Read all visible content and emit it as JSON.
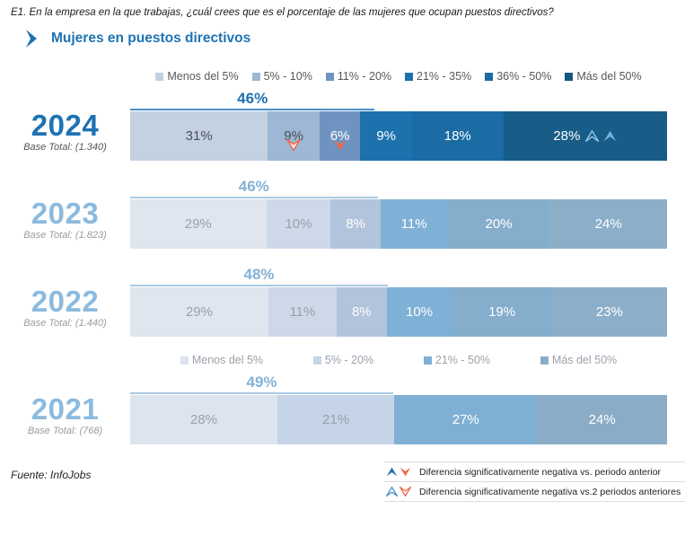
{
  "question": "E1. En la empresa en la que trabajas, ¿cuál crees que es el porcentaje de las mujeres que ocupan puestos directivos?",
  "title": "Mujeres en puestos directivos",
  "source": "Fuente: InfoJobs",
  "colors": {
    "accent": "#1e73b2",
    "question_text": "#1a1a1a",
    "legend_top_text": "#55585c",
    "legend_mid_text": "#9aa2ab",
    "orange": "#f2674a",
    "light_blue_marker": "#74b0dd"
  },
  "legend_top": [
    {
      "label": "Menos del 5%",
      "color": "#c3d1e2"
    },
    {
      "label": "5% - 10%",
      "color": "#9db7d4"
    },
    {
      "label": "11% - 20%",
      "color": "#6e93c0"
    },
    {
      "label": "21% - 35%",
      "color": "#1d72ad"
    },
    {
      "label": "36% - 50%",
      "color": "#1b6aa2"
    },
    {
      "label": "Más del 50%",
      "color": "#15567e"
    }
  ],
  "legend_mid": [
    {
      "label": "Menos del 5%",
      "color": "#dce4ee"
    },
    {
      "label": "5% - 20%",
      "color": "#c5d4e7"
    },
    {
      "label": "21% - 50%",
      "color": "#7fb0d4"
    },
    {
      "label": "Más del 50%",
      "color": "#8aacc6"
    }
  ],
  "markers": {
    "down-solid-orange": {
      "dir": "down",
      "fill": "#f2674a",
      "stroke": "none"
    },
    "down-outline-orange": {
      "dir": "down",
      "fill": "#ffffff",
      "stroke": "#f2674a"
    },
    "up-solid-light": {
      "dir": "up",
      "fill": "#74b0dd",
      "stroke": "none"
    },
    "up-outline-light": {
      "dir": "up",
      "fill": "none",
      "stroke": "#8fc0e4"
    },
    "up-solid-blue": {
      "dir": "up",
      "fill": "#2a6fb0",
      "stroke": "none"
    },
    "up-outline-blue": {
      "dir": "up",
      "fill": "#ffffff",
      "stroke": "#4a90c8"
    }
  },
  "sig_legend": [
    {
      "icons": [
        "up-solid-blue",
        "down-solid-orange"
      ],
      "label": "Diferencia significativamente negativa vs. periodo anterior"
    },
    {
      "icons": [
        "up-outline-blue",
        "down-outline-orange"
      ],
      "label": "Diferencia significativamente negativa vs.2 periodos anteriores"
    }
  ],
  "chart_data": {
    "type": "bar",
    "orientation": "horizontal-stacked",
    "unit": "%",
    "title": "Mujeres en puestos directivos",
    "categories_top": [
      "Menos del 5%",
      "5% - 10%",
      "11% - 20%",
      "21% - 35%",
      "36% - 50%",
      "Más del 50%"
    ],
    "categories_2021": [
      "Menos del 5%",
      "5% - 20%",
      "21% - 50%",
      "Más del 50%"
    ],
    "rows": [
      {
        "year": "2024",
        "year_color": "#1e73b2",
        "base": "Base Total: (1.340)",
        "base_color": "#555555",
        "bracket": {
          "label": "46%",
          "covers": 3,
          "label_color": "#1d72b4",
          "line_color": "#4a8fc7"
        },
        "segments": [
          {
            "value": 31,
            "label": "31%",
            "color": "#c3d1e2",
            "text": "#4a4f55"
          },
          {
            "value": 9,
            "label": "9%",
            "color": "#9db7d4",
            "text": "#4a4f55",
            "marker_below": "down-outline-orange"
          },
          {
            "value": 6,
            "label": "6%",
            "color": "#6e93c0",
            "text": "#ffffff",
            "marker_below": "down-solid-orange"
          },
          {
            "value": 9,
            "label": "9%",
            "color": "#1d72ad",
            "text": "#ffffff"
          },
          {
            "value": 18,
            "label": "18%",
            "color": "#1b6ba4",
            "text": "#ffffff"
          },
          {
            "value": 28,
            "label": "28%",
            "color": "#175d88",
            "text": "#ffffff",
            "markers_inline": [
              "up-outline-light",
              "up-solid-light"
            ]
          }
        ]
      },
      {
        "year": "2023",
        "year_color": "#8cbade",
        "base": "Base Total: (1.823)",
        "base_color": "#9b9b9b",
        "bracket": {
          "label": "46%",
          "covers": 3,
          "label_color": "#82b3d9",
          "line_color": "#aac9e3"
        },
        "segments": [
          {
            "value": 29,
            "label": "29%",
            "color": "#dfe6ef",
            "text": "#9aa1a9"
          },
          {
            "value": 10,
            "label": "10%",
            "color": "#cdd8e8",
            "text": "#9aa1a9"
          },
          {
            "value": 8,
            "label": "8%",
            "color": "#b2c3dc",
            "text": "#ffffff"
          },
          {
            "value": 11,
            "label": "11%",
            "color": "#7fb0d6",
            "text": "#ffffff"
          },
          {
            "value": 20,
            "label": "20%",
            "color": "#85adcc",
            "text": "#ffffff"
          },
          {
            "value": 24,
            "label": "24%",
            "color": "#8cafc9",
            "text": "#ffffff"
          }
        ]
      },
      {
        "year": "2022",
        "year_color": "#8cbade",
        "base": "Base Total: (1.440)",
        "base_color": "#9b9b9b",
        "bracket": {
          "label": "48%",
          "covers": 3,
          "label_color": "#82b3d9",
          "line_color": "#aac9e3"
        },
        "segments": [
          {
            "value": 29,
            "label": "29%",
            "color": "#dfe6ef",
            "text": "#9aa1a9"
          },
          {
            "value": 11,
            "label": "11%",
            "color": "#cdd8e8",
            "text": "#9aa1a9"
          },
          {
            "value": 8,
            "label": "8%",
            "color": "#b2c3dc",
            "text": "#ffffff"
          },
          {
            "value": 10,
            "label": "10%",
            "color": "#7fb0d6",
            "text": "#ffffff"
          },
          {
            "value": 19,
            "label": "19%",
            "color": "#85adcc",
            "text": "#ffffff"
          },
          {
            "value": 23,
            "label": "23%",
            "color": "#8cafc9",
            "text": "#ffffff"
          }
        ]
      },
      {
        "year": "2021",
        "year_color": "#8cbade",
        "base": "Base Total: (768)",
        "base_color": "#9b9b9b",
        "legend_before": "legend_mid",
        "bracket": {
          "label": "49%",
          "covers": 2,
          "label_color": "#82b3d9",
          "line_color": "#aac9e3"
        },
        "segments": [
          {
            "value": 28,
            "label": "28%",
            "color": "#dce4ee",
            "text": "#9aa1a9"
          },
          {
            "value": 21,
            "label": "21%",
            "color": "#c5d4e7",
            "text": "#9aa1a9"
          },
          {
            "value": 27,
            "label": "27%",
            "color": "#7fb0d4",
            "text": "#ffffff"
          },
          {
            "value": 24,
            "label": "24%",
            "color": "#8aacc6",
            "text": "#ffffff"
          }
        ]
      }
    ]
  }
}
